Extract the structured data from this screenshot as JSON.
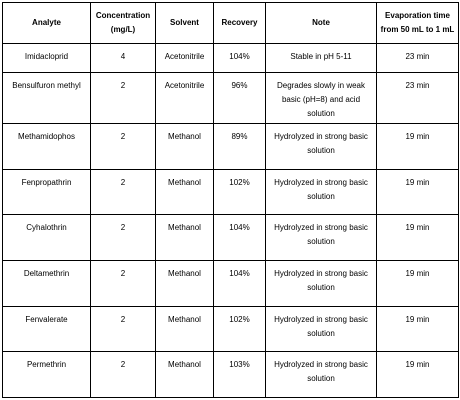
{
  "table": {
    "headers": [
      "Analyte",
      "Concentration (mg/L)",
      "Solvent",
      "Recovery",
      "Note",
      "Evaporation time from 50 mL to 1 mL"
    ],
    "rows": [
      [
        "Imidacloprid",
        "4",
        "Acetonitrile",
        "104%",
        "Stable in pH 5-11",
        "23 min"
      ],
      [
        "Bensulfuron methyl",
        "2",
        "Acetonitrile",
        "96%",
        "Degrades slowly in weak basic (pH=8) and acid solution",
        "23 min"
      ],
      [
        "Methamidophos",
        "2",
        "Methanol",
        "89%",
        "Hydrolyzed in strong basic solution",
        "19 min"
      ],
      [
        "Fenpropathrin",
        "2",
        "Methanol",
        "102%",
        "Hydrolyzed in strong basic solution",
        "19 min"
      ],
      [
        "Cyhalothrin",
        "2",
        "Methanol",
        "104%",
        "Hydrolyzed in strong basic solution",
        "19 min"
      ],
      [
        "Deltamethrin",
        "2",
        "Methanol",
        "104%",
        "Hydrolyzed in strong basic solution",
        "19 min"
      ],
      [
        "Fenvalerate",
        "2",
        "Methanol",
        "102%",
        "Hydrolyzed in strong basic solution",
        "19 min"
      ],
      [
        "Permethrin",
        "2",
        "Methanol",
        "103%",
        "Hydrolyzed in strong basic solution",
        "19 min"
      ]
    ]
  }
}
